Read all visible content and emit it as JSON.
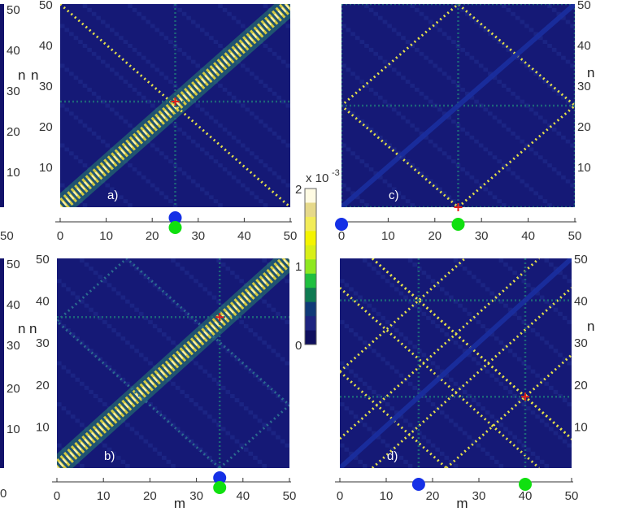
{
  "chart_data": [
    {
      "type": "heatmap",
      "panel_label": "a)",
      "xlabel": "",
      "ylabel": "n",
      "xlim": [
        0,
        50
      ],
      "ylim": [
        0,
        50
      ],
      "x_ticks": [
        "0",
        "10",
        "20",
        "30",
        "40",
        "50"
      ],
      "y_ticks": [
        "10",
        "20",
        "30",
        "40",
        "50"
      ],
      "marker": {
        "m": 25,
        "n": 26
      },
      "features": [
        {
          "kind": "diagonal_band",
          "from": [
            0,
            0
          ],
          "to": [
            50,
            50
          ],
          "intensity": "high"
        },
        {
          "kind": "line",
          "from": [
            0,
            50
          ],
          "to": [
            50,
            0
          ],
          "intensity": "medium"
        },
        {
          "kind": "grid_line",
          "axis": "x",
          "at": 25
        },
        {
          "kind": "grid_line",
          "axis": "y",
          "at": 26
        }
      ],
      "points": [
        {
          "x": 25,
          "color": "#1530e6"
        },
        {
          "x": 25,
          "color": "#10e010"
        }
      ]
    },
    {
      "type": "heatmap",
      "panel_label": "b)",
      "xlabel": "m",
      "ylabel": "n",
      "xlim": [
        0,
        50
      ],
      "ylim": [
        0,
        50
      ],
      "x_ticks": [
        "0",
        "10",
        "20",
        "30",
        "40",
        "50"
      ],
      "y_ticks": [
        "10",
        "20",
        "30",
        "40",
        "50"
      ],
      "marker": {
        "m": 35,
        "n": 36
      },
      "features": [
        {
          "kind": "diagonal_band",
          "from": [
            0,
            0
          ],
          "to": [
            50,
            50
          ],
          "intensity": "high"
        },
        {
          "kind": "diamond",
          "vertices": [
            [
              35,
              0
            ],
            [
              50,
              15
            ],
            [
              15,
              50
            ],
            [
              0,
              35
            ]
          ],
          "intensity": "low"
        },
        {
          "kind": "grid_line",
          "axis": "x",
          "at": 35
        },
        {
          "kind": "grid_line",
          "axis": "y",
          "at": 36
        }
      ],
      "points": [
        {
          "x": 35,
          "color": "#1530e6"
        },
        {
          "x": 35,
          "color": "#10e010"
        }
      ]
    },
    {
      "type": "heatmap",
      "panel_label": "c)",
      "xlabel": "",
      "ylabel": "n",
      "xlim": [
        0,
        50
      ],
      "ylim": [
        0,
        50
      ],
      "x_ticks": [
        "0",
        "10",
        "20",
        "30",
        "40",
        "50"
      ],
      "y_ticks": [
        "10",
        "20",
        "30",
        "40",
        "50"
      ],
      "marker": {
        "m": 25,
        "n": 0
      },
      "features": [
        {
          "kind": "diamond",
          "vertices": [
            [
              25,
              0
            ],
            [
              50,
              25
            ],
            [
              25,
              50
            ],
            [
              0,
              25
            ]
          ],
          "intensity": "medium"
        },
        {
          "kind": "grid_line",
          "axis": "x",
          "at": 25
        },
        {
          "kind": "grid_line",
          "axis": "y",
          "at": 25
        },
        {
          "kind": "grid_line",
          "axis": "x",
          "at": 0
        },
        {
          "kind": "grid_line",
          "axis": "y",
          "at": 0
        },
        {
          "kind": "grid_line",
          "axis": "x",
          "at": 50
        },
        {
          "kind": "grid_line",
          "axis": "y",
          "at": 50
        },
        {
          "kind": "diagonal_band",
          "from": [
            0,
            0
          ],
          "to": [
            50,
            50
          ],
          "intensity": "dark"
        }
      ],
      "points": [
        {
          "x": 0,
          "color": "#1530e6"
        },
        {
          "x": 25,
          "color": "#10e010"
        }
      ]
    },
    {
      "type": "heatmap",
      "panel_label": "d)",
      "xlabel": "m",
      "ylabel": "n",
      "xlim": [
        0,
        50
      ],
      "ylim": [
        0,
        50
      ],
      "x_ticks": [
        "0",
        "10",
        "20",
        "30",
        "40",
        "50"
      ],
      "y_ticks": [
        "10",
        "20",
        "30",
        "40",
        "50"
      ],
      "marker": {
        "m": 40,
        "n": 17
      },
      "features": [
        {
          "kind": "line",
          "from": [
            23,
            0
          ],
          "to": [
            50,
            27
          ],
          "intensity": "medium"
        },
        {
          "kind": "line",
          "from": [
            0,
            23
          ],
          "to": [
            27,
            50
          ],
          "intensity": "medium"
        },
        {
          "kind": "line",
          "from": [
            0,
            57
          ],
          "to": [
            57,
            0
          ],
          "intensity": "medium"
        },
        {
          "kind": "line",
          "from": [
            0,
            23
          ],
          "to": [
            23,
            0
          ],
          "intensity": "medium"
        },
        {
          "kind": "line",
          "from": [
            7,
            0
          ],
          "to": [
            50,
            43
          ],
          "intensity": "medium"
        },
        {
          "kind": "line",
          "from": [
            0,
            7
          ],
          "to": [
            43,
            50
          ],
          "intensity": "medium"
        },
        {
          "kind": "line",
          "from": [
            0,
            43
          ],
          "to": [
            43,
            0
          ],
          "intensity": "medium"
        },
        {
          "kind": "line",
          "from": [
            7,
            50
          ],
          "to": [
            50,
            7
          ],
          "intensity": "medium"
        },
        {
          "kind": "grid_line",
          "axis": "x",
          "at": 17
        },
        {
          "kind": "grid_line",
          "axis": "x",
          "at": 40
        },
        {
          "kind": "grid_line",
          "axis": "y",
          "at": 17
        },
        {
          "kind": "grid_line",
          "axis": "y",
          "at": 40
        },
        {
          "kind": "diagonal_band",
          "from": [
            0,
            0
          ],
          "to": [
            50,
            50
          ],
          "intensity": "dark"
        }
      ],
      "points": [
        {
          "x": 17,
          "color": "#1530e6"
        },
        {
          "x": 40,
          "color": "#10e010"
        }
      ]
    }
  ],
  "colorbar": {
    "exponent_base": "x 10",
    "exponent_power": "-3",
    "ticks": [
      "2",
      "1",
      "0"
    ],
    "range": [
      0,
      2
    ],
    "colors": [
      "#fffbe3",
      "#e6d98a",
      "#f2ec58",
      "#f4f400",
      "#d8ef18",
      "#8ee820",
      "#1fbf3f",
      "#0f7a52",
      "#103a78",
      "#1e2480",
      "#0f0f5e"
    ]
  },
  "left_edge": {
    "labels": [
      "n",
      "n"
    ],
    "ticks_top": [
      "50",
      "40",
      "30",
      "20",
      "10"
    ],
    "ticks_bottom": [
      "50",
      "40",
      "30",
      "20",
      "10"
    ],
    "axis_ticks": [
      "50",
      "0"
    ]
  }
}
